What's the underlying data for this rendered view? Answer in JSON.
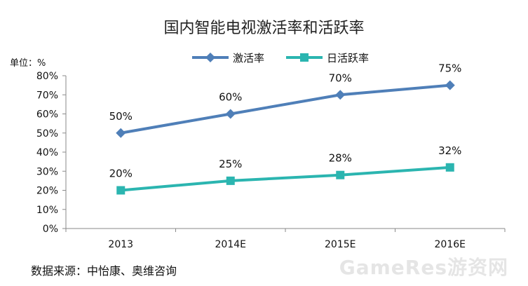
{
  "chart_data": {
    "type": "line",
    "title": "国内智能电视激活率和活跃率",
    "unit_label": "单位：%",
    "categories": [
      "2013",
      "2014E",
      "2015E",
      "2016E"
    ],
    "y_ticks": [
      "0%",
      "10%",
      "20%",
      "30%",
      "40%",
      "50%",
      "60%",
      "70%",
      "80%"
    ],
    "ylim": [
      0,
      80
    ],
    "grid": false,
    "legend_position": "top",
    "series": [
      {
        "name": "激活率",
        "values": [
          50,
          60,
          70,
          75
        ],
        "labels": [
          "50%",
          "60%",
          "70%",
          "75%"
        ],
        "color": "#4F7FB8",
        "marker": "diamond"
      },
      {
        "name": "日活跃率",
        "values": [
          20,
          25,
          28,
          32
        ],
        "labels": [
          "20%",
          "25%",
          "28%",
          "32%"
        ],
        "color": "#2BB5B0",
        "marker": "square"
      }
    ]
  },
  "footer": {
    "source": "数据来源：中怡康、奥维咨询",
    "watermark": "GameRes游资网"
  }
}
